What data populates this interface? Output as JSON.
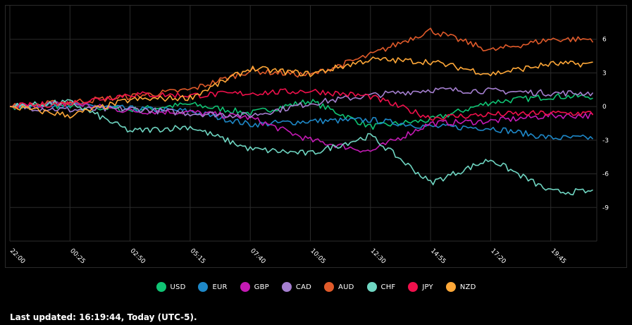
{
  "chart_data": {
    "type": "line",
    "x": [
      "22:00",
      "00:25",
      "02:50",
      "05:15",
      "07:40",
      "10:05",
      "12:30",
      "14:55",
      "17:20",
      "19:45"
    ],
    "ylim": [
      -12,
      9
    ],
    "yticks": [
      6,
      3,
      0,
      -3,
      -6,
      -9
    ],
    "grid": true,
    "legend_position": "bottom",
    "series": [
      {
        "name": "USD",
        "color": "#10c474",
        "values": [
          0,
          0.1,
          -0.3,
          0.2,
          -0.6,
          0.5,
          -1.8,
          -1.2,
          0.4,
          0.9
        ]
      },
      {
        "name": "EUR",
        "color": "#1e88c8",
        "values": [
          0,
          0.2,
          -0.2,
          -0.4,
          -1.6,
          -1.3,
          -1.2,
          -1.8,
          -1.9,
          -2.8
        ]
      },
      {
        "name": "GBP",
        "color": "#c41ab4",
        "values": [
          0,
          0.3,
          -0.4,
          -0.5,
          -1.0,
          -3.0,
          -4.0,
          -1.5,
          -1.3,
          -0.8
        ]
      },
      {
        "name": "CAD",
        "color": "#a57fd0",
        "values": [
          0,
          -0.3,
          -0.2,
          -0.6,
          -0.8,
          0.3,
          1.0,
          1.5,
          1.4,
          1.2
        ]
      },
      {
        "name": "AUD",
        "color": "#e05a2a",
        "values": [
          0,
          0.4,
          0.9,
          1.5,
          3.2,
          2.8,
          4.6,
          6.8,
          5.0,
          6.0
        ]
      },
      {
        "name": "CHF",
        "color": "#6fd6c2",
        "values": [
          0,
          0.4,
          -2.2,
          -1.8,
          -3.8,
          -4.2,
          -2.6,
          -6.8,
          -4.7,
          -7.6
        ]
      },
      {
        "name": "JPY",
        "color": "#f0104c",
        "values": [
          0,
          0.3,
          1.1,
          1.0,
          1.2,
          1.4,
          0.9,
          -1.0,
          -0.7,
          -0.6
        ]
      },
      {
        "name": "NZD",
        "color": "#ffa838",
        "values": [
          0,
          -0.8,
          0.6,
          0.8,
          3.4,
          2.9,
          4.2,
          4.0,
          2.9,
          3.8
        ]
      }
    ]
  },
  "footer": {
    "text": "Last updated: 16:19:44, Today (UTC-5)."
  }
}
